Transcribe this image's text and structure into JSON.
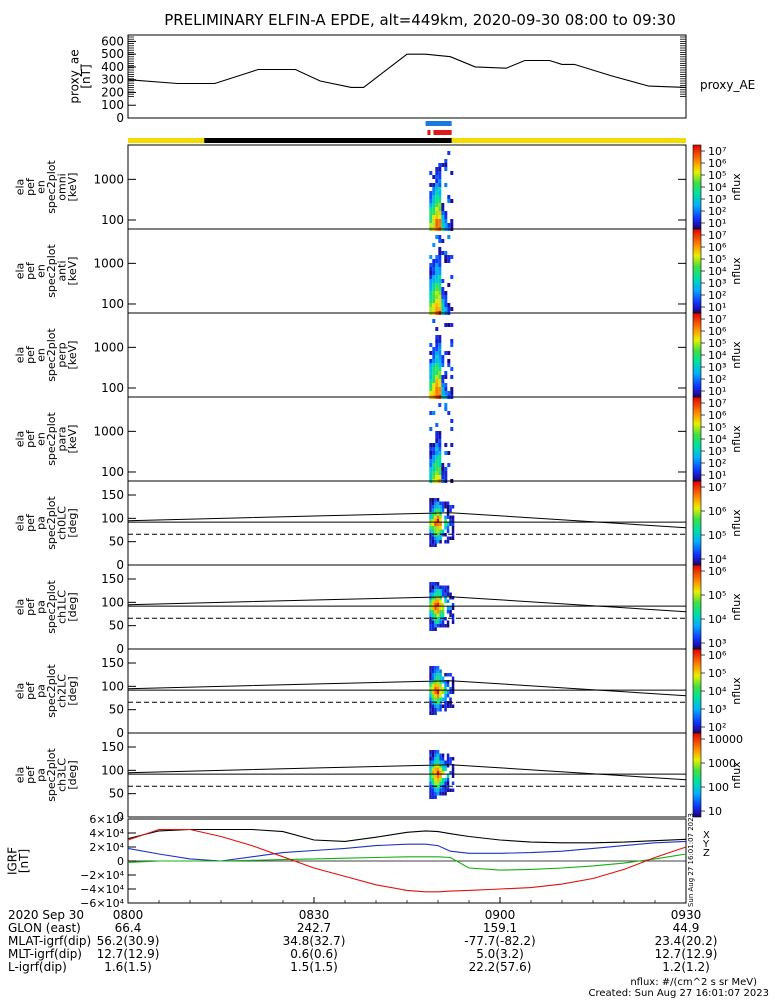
{
  "title": "PRELIMINARY ELFIN-A EPDE, alt=449km, 2020-09-30 08:00 to 09:30",
  "colors": {
    "ae_line": "#000000",
    "bar_yellow": "#f2dc00",
    "bar_black": "#000000",
    "bar_blue": "#1a78e0",
    "bar_red": "#e01818",
    "grf_x": "#000000",
    "grf_y": "#2030c0",
    "grf_z": "#10b010",
    "grf_total": "#e01010",
    "colormap": "rainbow"
  },
  "panels": {
    "ae": {
      "ylabel": [
        "proxy_ae",
        "[nT]"
      ],
      "side_label": "proxy_AE"
    },
    "spec": [
      {
        "ylabel": [
          "ela",
          "pef",
          "en",
          "spec2plot",
          "omni",
          "[keV]"
        ]
      },
      {
        "ylabel": [
          "ela",
          "pef",
          "en",
          "spec2plot",
          "anti",
          "[keV]"
        ]
      },
      {
        "ylabel": [
          "ela",
          "pef",
          "en",
          "spec2plot",
          "perp",
          "[keV]"
        ]
      },
      {
        "ylabel": [
          "ela",
          "pef",
          "en",
          "spec2plot",
          "para",
          "[keV]"
        ]
      }
    ],
    "pa": [
      {
        "ylabel": [
          "ela",
          "pef",
          "pa",
          "spec2plot",
          "ch0LC",
          "[deg]"
        ]
      },
      {
        "ylabel": [
          "ela",
          "pef",
          "pa",
          "spec2plot",
          "ch1LC",
          "[deg]"
        ]
      },
      {
        "ylabel": [
          "ela",
          "pef",
          "pa",
          "spec2plot",
          "ch2LC",
          "[deg]"
        ]
      },
      {
        "ylabel": [
          "ela",
          "pef",
          "pa",
          "spec2plot",
          "ch3LC",
          "[deg]"
        ]
      }
    ],
    "igrf": {
      "ylabel": [
        "IGRF",
        "[nT]"
      ],
      "legend": [
        "X",
        "Y",
        "Z"
      ],
      "side_text": "Sun Aug 27 16:01:07 2023"
    }
  },
  "colorbars": [
    {
      "label": "nflux",
      "ticks": [
        "10⁷",
        "10⁶",
        "10⁵",
        "10⁴",
        "10³",
        "10²",
        "10¹"
      ]
    },
    {
      "label": "nflux",
      "ticks": [
        "10⁷",
        "10⁶",
        "10⁵",
        "10⁴",
        "10³",
        "10²",
        "10¹"
      ]
    },
    {
      "label": "nflux",
      "ticks": [
        "10⁷",
        "10⁶",
        "10⁵",
        "10⁴",
        "10³",
        "10²",
        "10¹"
      ]
    },
    {
      "label": "nflux",
      "ticks": [
        "10⁷",
        "10⁶",
        "10⁵",
        "10⁴",
        "10³",
        "10²",
        "10¹"
      ]
    },
    {
      "label": "nflux",
      "ticks": [
        "10⁷",
        "10⁶",
        "10⁵",
        "10⁴"
      ]
    },
    {
      "label": "nflux",
      "ticks": [
        "10⁶",
        "10⁵",
        "10⁴",
        "10³"
      ]
    },
    {
      "label": "nflux",
      "ticks": [
        "10⁶",
        "10⁵",
        "10⁴",
        "10³",
        "10²"
      ]
    },
    {
      "label": "nflux",
      "ticks": [
        "10000",
        "1000",
        "100",
        "10"
      ]
    }
  ],
  "footer": {
    "rows": [
      {
        "label": "2020 Sep 30",
        "values": [
          "0800",
          "0830",
          "0900",
          "0930"
        ]
      },
      {
        "label": "GLON (east)",
        "values": [
          "66.4",
          "242.7",
          "159.1",
          "44.9"
        ]
      },
      {
        "label": "MLAT-igrf(dip)",
        "values": [
          "56.2(30.9)",
          "34.8(32.7)",
          "-77.7(-82.2)",
          "23.4(20.2)"
        ]
      },
      {
        "label": "MLT-igrf(dip)",
        "values": [
          "12.7(12.9)",
          "0.6(0.6)",
          "5.0(3.2)",
          "12.7(12.9)"
        ]
      },
      {
        "label": "L-igrf(dip)",
        "values": [
          "1.6(1.5)",
          "1.5(1.5)",
          "22.2(57.6)",
          "1.2(1.2)"
        ]
      }
    ],
    "units_note": "nflux: #/(cm^2 s sr MeV)",
    "created": "Created: Sun Aug 27 16:01:07 2023"
  },
  "chart_data": {
    "type": "multi-panel time series and spectrograms",
    "time_range": [
      "2020-09-30 08:00",
      "2020-09-30 09:30"
    ],
    "x_ticks": [
      "0800",
      "0830",
      "0900",
      "0930"
    ],
    "proxy_ae": {
      "type": "line",
      "ylabel": "proxy_ae [nT]",
      "ylim": [
        0,
        650
      ],
      "yticks": [
        0,
        100,
        200,
        300,
        400,
        500,
        600
      ],
      "x_min": [
        0,
        8,
        14,
        21,
        27,
        31,
        36,
        38,
        45,
        48,
        52,
        56,
        61,
        64,
        68,
        70,
        72,
        78,
        84,
        90
      ],
      "values": [
        300,
        270,
        270,
        380,
        380,
        290,
        240,
        240,
        500,
        500,
        480,
        400,
        390,
        450,
        450,
        420,
        420,
        330,
        250,
        240
      ]
    },
    "segment_bars": {
      "yellow": [
        [
          0,
          12.3
        ],
        [
          52.2,
          90
        ]
      ],
      "black": [
        [
          12.3,
          52.2
        ]
      ],
      "blue": [
        [
          48.0,
          52.2
        ]
      ],
      "red": [
        [
          48.3,
          52.2
        ]
      ]
    },
    "energy_spectrograms": {
      "type": "heatmap",
      "names": [
        "omni",
        "anti",
        "perp",
        "para"
      ],
      "ylabel": "energy [keV]",
      "y_scale": "log",
      "ylim": [
        60,
        7000
      ],
      "yticks": [
        100,
        1000
      ],
      "active_window_min": [
        48.6,
        52.0
      ],
      "colorbar_range": [
        10,
        10000000
      ],
      "colorbar_scale": "log"
    },
    "pitch_angle_spectrograms": {
      "type": "heatmap",
      "names": [
        "ch0LC",
        "ch1LC",
        "ch2LC",
        "ch3LC"
      ],
      "ylabel": "pitch angle [deg]",
      "ylim": [
        0,
        180
      ],
      "yticks": [
        0,
        50,
        100,
        150
      ],
      "active_window_min": [
        48.6,
        52.3
      ],
      "loss_cone_dashed_deg": 66,
      "solid_lines": {
        "x_min": [
          0,
          30,
          52,
          90
        ],
        "upper_deg": [
          95,
          105,
          112,
          80
        ],
        "lower_deg": [
          92,
          92,
          92,
          92
        ]
      },
      "colorbar_ranges": [
        [
          10000,
          10000000
        ],
        [
          1000,
          1000000
        ],
        [
          100,
          1000000
        ],
        [
          10,
          10000
        ]
      ]
    },
    "igrf": {
      "type": "line",
      "ylabel": "IGRF [nT]",
      "ylim": [
        -60000,
        60000
      ],
      "ytick_labels": [
        "6×10⁴",
        "4×10⁴",
        "2×10⁴",
        "0",
        "−2×10⁴",
        "−4×10⁴",
        "−6×10⁴"
      ],
      "x_min": [
        0,
        5,
        10,
        15,
        20,
        25,
        30,
        35,
        40,
        45,
        48,
        50,
        52,
        55,
        60,
        65,
        70,
        75,
        80,
        85,
        90
      ],
      "series": [
        {
          "name": "X",
          "values": [
            32000,
            43000,
            45000,
            45000,
            45000,
            42000,
            30000,
            28000,
            34000,
            41000,
            43000,
            42000,
            39000,
            35000,
            30000,
            27000,
            26000,
            26000,
            27000,
            29000,
            31000
          ]
        },
        {
          "name": "Y",
          "values": [
            18000,
            10000,
            3000,
            0,
            6000,
            12000,
            15000,
            18000,
            22000,
            24000,
            24000,
            22000,
            14000,
            11000,
            11000,
            12000,
            14000,
            18000,
            22000,
            26000,
            28000
          ]
        },
        {
          "name": "Z",
          "values": [
            -2000,
            0,
            0,
            0,
            1000,
            2000,
            3000,
            4000,
            5000,
            6000,
            6000,
            6000,
            5000,
            -10000,
            -13000,
            -12000,
            -10000,
            -7000,
            -3000,
            3000,
            10000
          ]
        },
        {
          "name": "total",
          "values": [
            30000,
            45000,
            45000,
            35000,
            22000,
            6000,
            -10000,
            -22000,
            -34000,
            -42000,
            -44000,
            -44000,
            -43000,
            -42000,
            -40000,
            -38000,
            -33000,
            -25000,
            -12000,
            5000,
            20000
          ]
        }
      ]
    }
  }
}
